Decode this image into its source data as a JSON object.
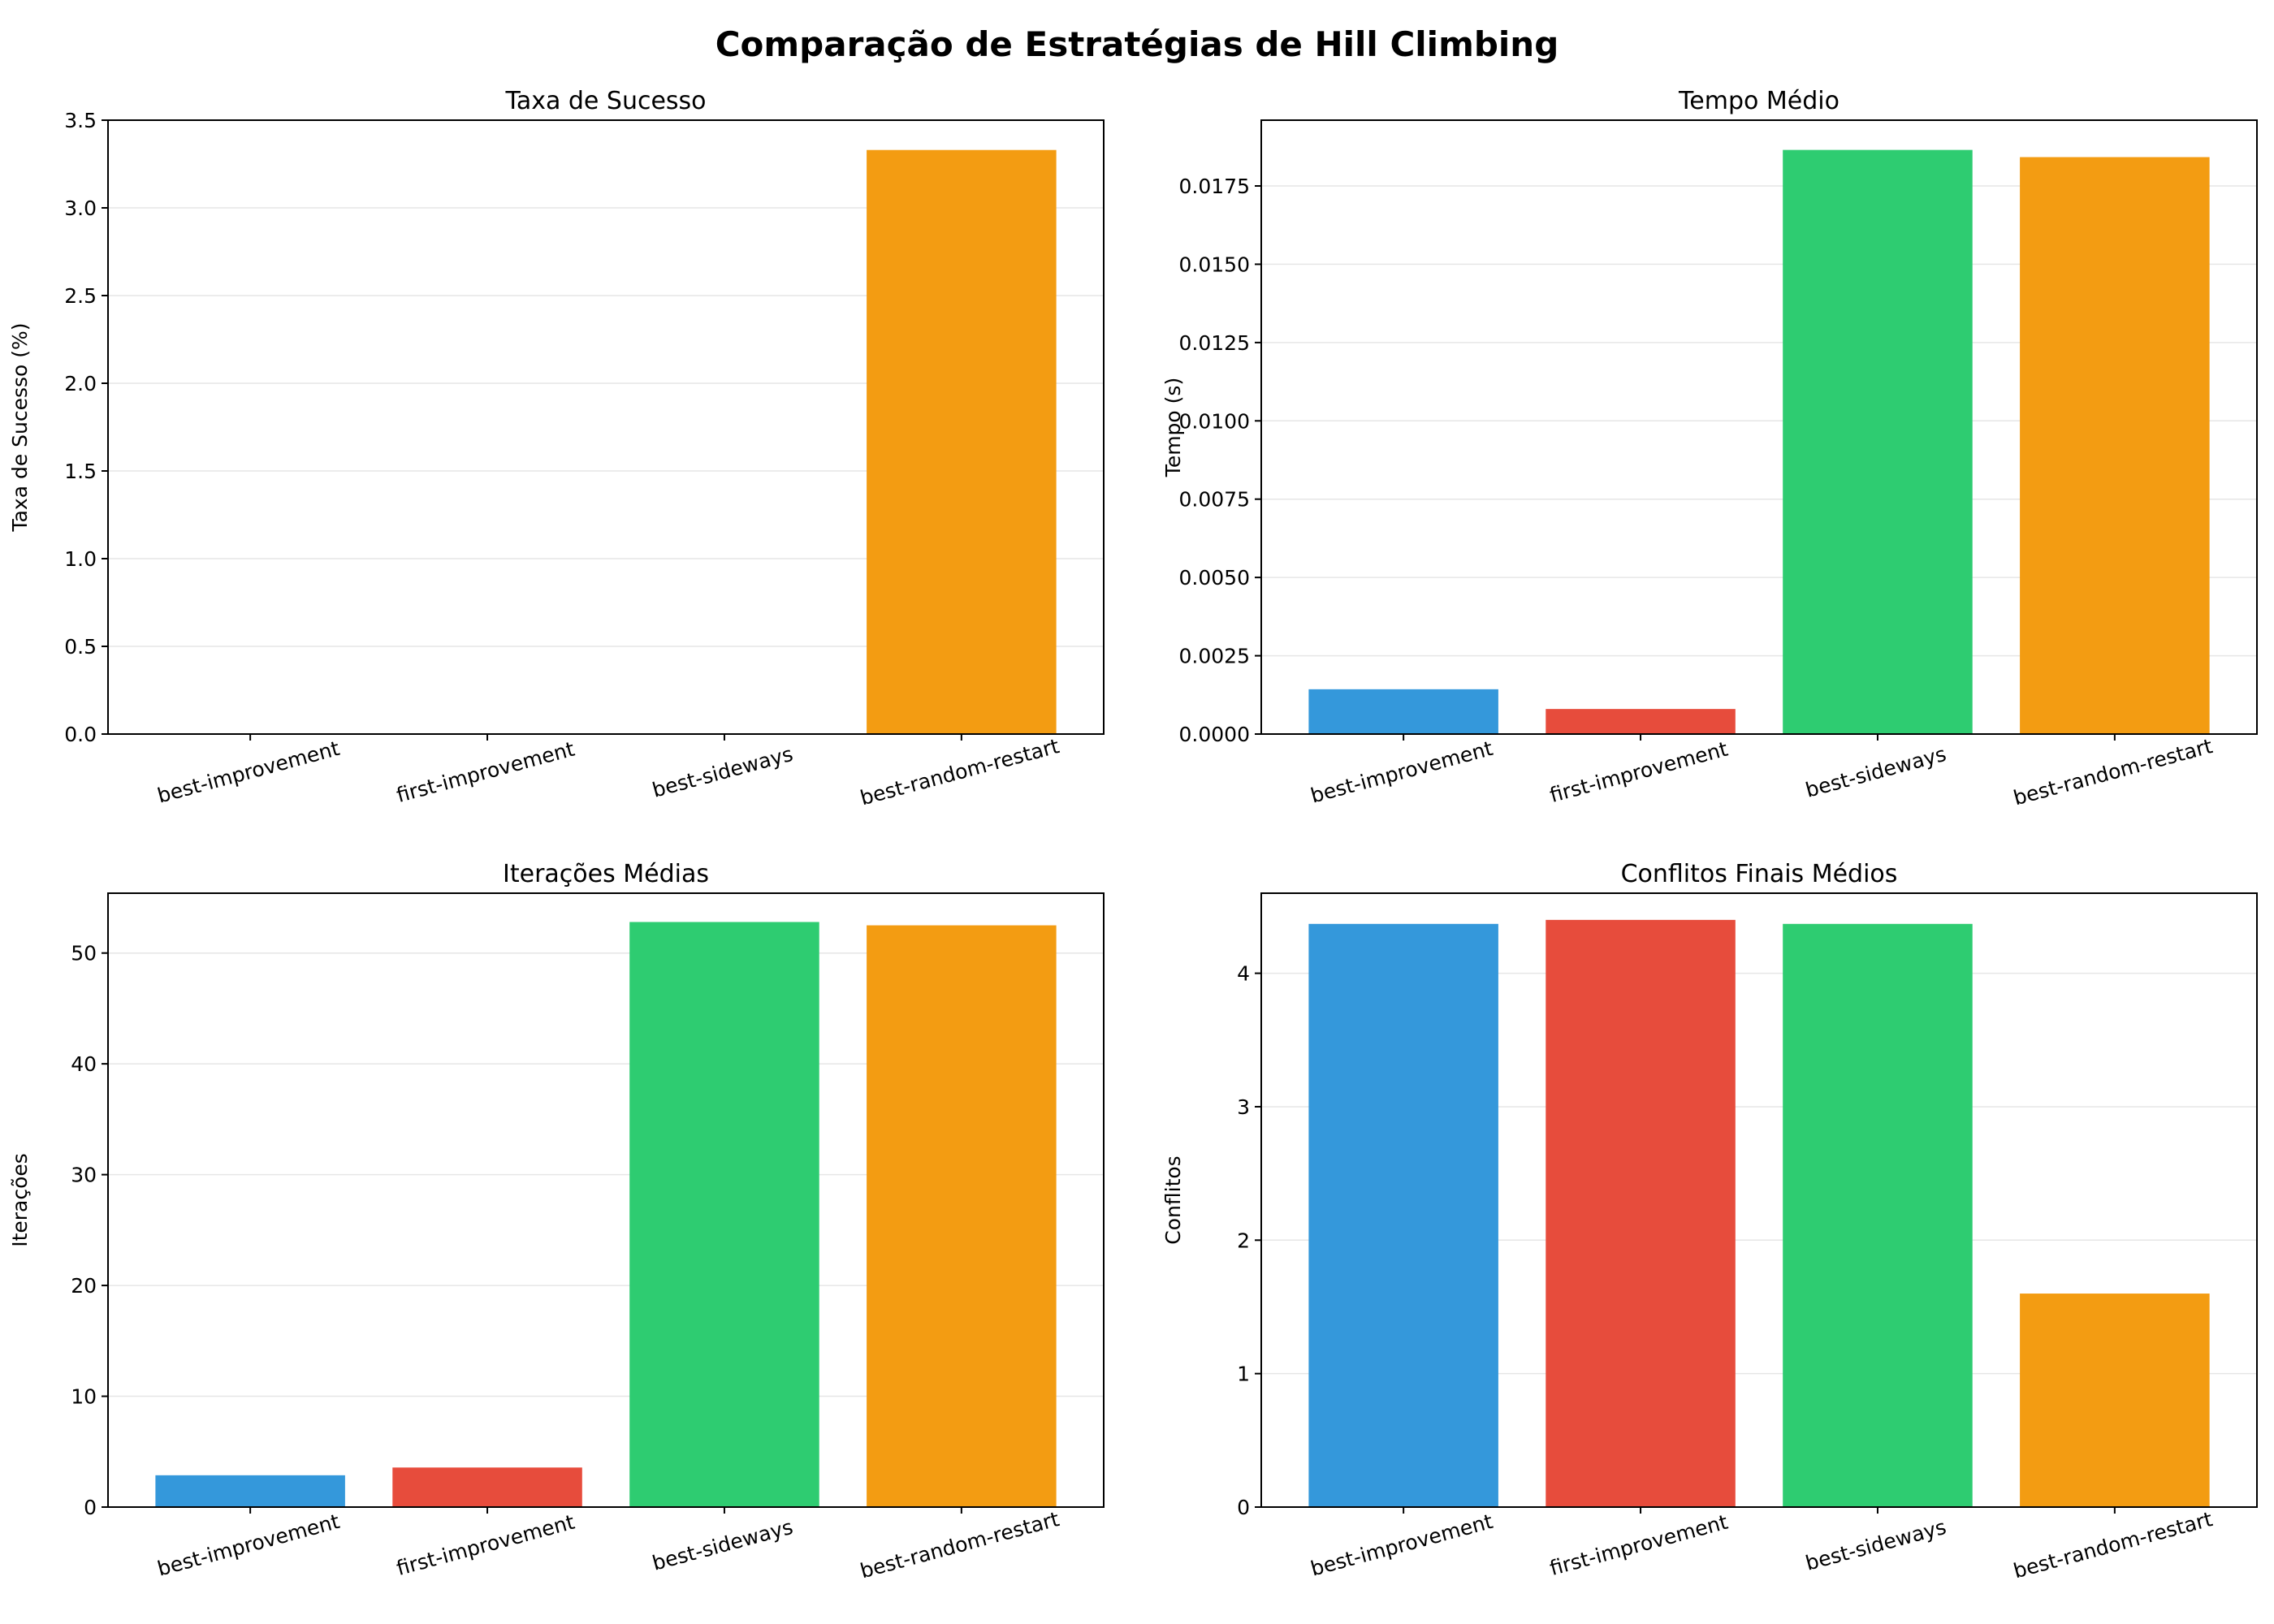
{
  "figure": {
    "title": "Comparação de Estratégias de Hill Climbing"
  },
  "chart_data": [
    {
      "type": "bar",
      "title": "Taxa de Sucesso",
      "xlabel": "",
      "ylabel": "Taxa de Sucesso (%)",
      "categories": [
        "best-improvement",
        "first-improvement",
        "best-sideways",
        "best-random-restart"
      ],
      "values": [
        0,
        0,
        0,
        3.33
      ],
      "colors": [
        "#3498db",
        "#e74c3c",
        "#2ecc71",
        "#f39c12"
      ],
      "ylim": [
        0,
        3.5
      ],
      "yticks": [
        0.0,
        0.5,
        1.0,
        1.5,
        2.0,
        2.5,
        3.0,
        3.5
      ],
      "ytick_labels": [
        "0.0",
        "0.5",
        "1.0",
        "1.5",
        "2.0",
        "2.5",
        "3.0",
        "3.5"
      ],
      "grid": "y"
    },
    {
      "type": "bar",
      "title": "Tempo Médio",
      "xlabel": "",
      "ylabel": "Tempo (s)",
      "categories": [
        "best-improvement",
        "first-improvement",
        "best-sideways",
        "best-random-restart"
      ],
      "values": [
        0.00143,
        0.0008,
        0.01865,
        0.01842
      ],
      "colors": [
        "#3498db",
        "#e74c3c",
        "#2ecc71",
        "#f39c12"
      ],
      "ylim": [
        0,
        0.0196
      ],
      "yticks": [
        0,
        0.0025,
        0.005,
        0.0075,
        0.01,
        0.0125,
        0.015,
        0.0175
      ],
      "ytick_labels": [
        "0.0000",
        "0.0025",
        "0.0050",
        "0.0075",
        "0.0100",
        "0.0125",
        "0.0150",
        "0.0175"
      ],
      "grid": "y"
    },
    {
      "type": "bar",
      "title": "Iterações Médias",
      "xlabel": "",
      "ylabel": "Iterações",
      "categories": [
        "best-improvement",
        "first-improvement",
        "best-sideways",
        "best-random-restart"
      ],
      "values": [
        2.87,
        3.57,
        52.8,
        52.5
      ],
      "colors": [
        "#3498db",
        "#e74c3c",
        "#2ecc71",
        "#f39c12"
      ],
      "ylim": [
        0,
        55.4
      ],
      "yticks": [
        0,
        10,
        20,
        30,
        40,
        50
      ],
      "ytick_labels": [
        "0",
        "10",
        "20",
        "30",
        "40",
        "50"
      ],
      "grid": "y"
    },
    {
      "type": "bar",
      "title": "Conflitos Finais Médios",
      "xlabel": "",
      "ylabel": "Conflitos",
      "categories": [
        "best-improvement",
        "first-improvement",
        "best-sideways",
        "best-random-restart"
      ],
      "values": [
        4.37,
        4.4,
        4.37,
        1.6
      ],
      "colors": [
        "#3498db",
        "#e74c3c",
        "#2ecc71",
        "#f39c12"
      ],
      "ylim": [
        0,
        4.6
      ],
      "yticks": [
        0,
        1,
        2,
        3,
        4
      ],
      "ytick_labels": [
        "0",
        "1",
        "2",
        "3",
        "4"
      ],
      "grid": "y"
    }
  ]
}
